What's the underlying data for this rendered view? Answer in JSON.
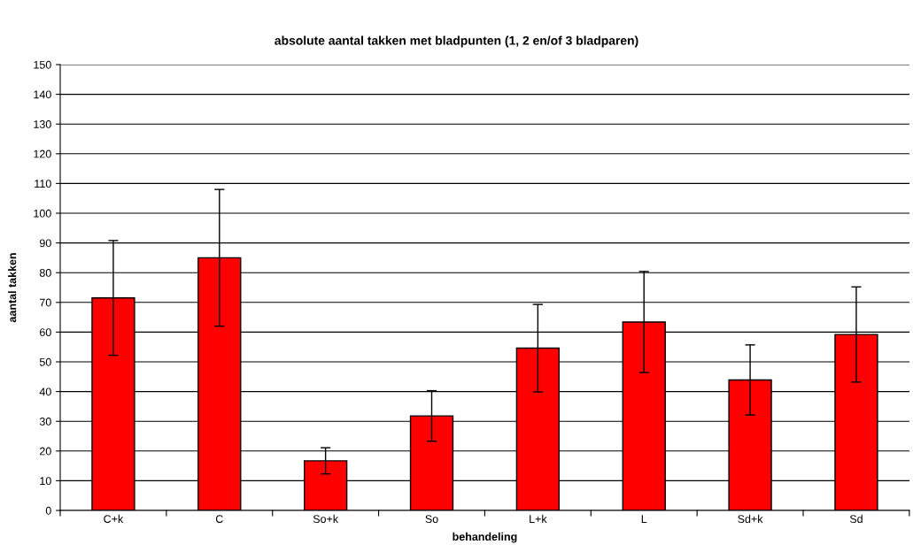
{
  "chart_data": {
    "type": "bar",
    "title": "absolute aantal takken met bladpunten (1, 2 en/of 3 bladparen)",
    "xlabel": "behandeling",
    "ylabel": "aantal takken",
    "categories": [
      "C+k",
      "C",
      "So+k",
      "So",
      "L+k",
      "L",
      "Sd+k",
      "Sd"
    ],
    "values": [
      71.5,
      85,
      16.7,
      31.8,
      54.6,
      63.4,
      43.9,
      59.2
    ],
    "errors": [
      19.3,
      23,
      4.4,
      8.5,
      14.7,
      17,
      11.8,
      16
    ],
    "color": "#ff0000",
    "ylim": [
      0,
      150
    ],
    "yticks": [
      0,
      10,
      20,
      30,
      40,
      50,
      60,
      70,
      80,
      90,
      100,
      110,
      120,
      130,
      140,
      150
    ],
    "grid": "y"
  }
}
